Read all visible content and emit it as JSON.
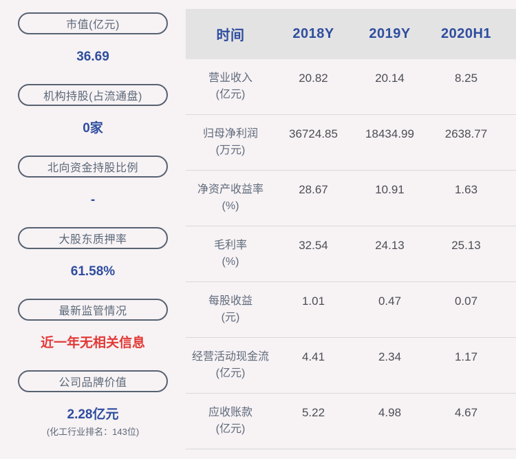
{
  "sidebar": {
    "metrics": [
      {
        "label": "市值(亿元)",
        "value": "36.69"
      },
      {
        "label": "机构持股(占流通盘)",
        "value": "0家"
      },
      {
        "label": "北向资金持股比例",
        "value": "-"
      },
      {
        "label": "大股东质押率",
        "value": "61.58%"
      },
      {
        "label": "最新监管情况",
        "value": "近一年无相关信息"
      },
      {
        "label": "公司品牌价值",
        "value": "2.28亿元",
        "subtext": "(化工行业排名：143位)"
      }
    ]
  },
  "table": {
    "header": {
      "time_label": "时间",
      "columns": [
        "2018Y",
        "2019Y",
        "2020H1"
      ]
    },
    "rows": [
      {
        "name": "营业收入",
        "unit": "(亿元)",
        "values": [
          "20.82",
          "20.14",
          "8.25"
        ]
      },
      {
        "name": "归母净利润",
        "unit": "(万元)",
        "values": [
          "36724.85",
          "18434.99",
          "2638.77"
        ]
      },
      {
        "name": "净资产收益率",
        "unit": "(%)",
        "values": [
          "28.67",
          "10.91",
          "1.63"
        ]
      },
      {
        "name": "毛利率",
        "unit": "(%)",
        "values": [
          "32.54",
          "24.13",
          "25.13"
        ]
      },
      {
        "name": "每股收益",
        "unit": "(元)",
        "values": [
          "1.01",
          "0.47",
          "0.07"
        ]
      },
      {
        "name": "经营活动现金流",
        "unit": "(亿元)",
        "values": [
          "4.41",
          "2.34",
          "1.17"
        ]
      },
      {
        "name": "应收账款",
        "unit": "(亿元)",
        "values": [
          "5.22",
          "4.98",
          "4.67"
        ]
      }
    ]
  },
  "chart_data": {
    "type": "table",
    "title": "",
    "columns": [
      "时间",
      "2018Y",
      "2019Y",
      "2020H1"
    ],
    "rows": [
      [
        "营业收入(亿元)",
        20.82,
        20.14,
        8.25
      ],
      [
        "归母净利润(万元)",
        36724.85,
        18434.99,
        2638.77
      ],
      [
        "净资产收益率(%)",
        28.67,
        10.91,
        1.63
      ],
      [
        "毛利率(%)",
        32.54,
        24.13,
        25.13
      ],
      [
        "每股收益(元)",
        1.01,
        0.47,
        0.07
      ],
      [
        "经营活动现金流(亿元)",
        4.41,
        2.34,
        1.17
      ],
      [
        "应收账款(亿元)",
        5.22,
        4.98,
        4.67
      ]
    ]
  },
  "colors": {
    "background": "#f7f2f4",
    "header_background": "#e4e3e4",
    "accent_blue": "#2e4d9e",
    "alert_red": "#e23936",
    "slate_text": "#5b6878",
    "cell_text": "#4c4e56",
    "pill_border": "#566271",
    "divider": "#d9d9db"
  }
}
